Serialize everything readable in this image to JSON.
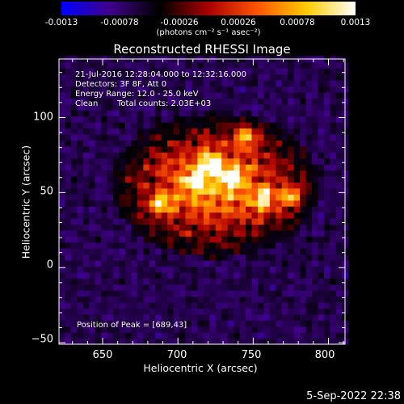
{
  "colorbar": {
    "tick_labels": [
      "-0.0013",
      "-0.00078",
      "-0.00026",
      "0.00026",
      "0.00078",
      "0.0013"
    ],
    "units": "(photons cm⁻² s⁻¹ asec⁻²)",
    "colors": [
      "#0000ff",
      "#400088",
      "#000000",
      "#aa0000",
      "#ff5500",
      "#ffcc00",
      "#ffffff"
    ]
  },
  "chart_data": {
    "type": "heatmap",
    "title": "Reconstructed RHESSI Image",
    "xlabel": "Heliocentric X (arcsec)",
    "ylabel": "Heliocentric Y (arcsec)",
    "xlim": [
      621,
      811
    ],
    "ylim": [
      -51,
      139
    ],
    "x_ticks": [
      650,
      700,
      750,
      800
    ],
    "y_ticks": [
      -50,
      0,
      50,
      100
    ],
    "x_tick_labels": [
      "650",
      "700",
      "750",
      "800"
    ],
    "y_tick_labels": [
      "−50",
      "0",
      "50",
      "100"
    ],
    "pixel_size_arcsec": 4,
    "colorbar_range": [
      -0.0013,
      0.0013
    ],
    "peak_position": [
      689,
      43
    ],
    "bright_sources": [
      [
        689,
        43
      ],
      [
        722,
        70
      ],
      [
        757,
        46
      ],
      [
        775,
        48
      ],
      [
        745,
        88
      ],
      [
        712,
        58
      ],
      [
        735,
        60
      ]
    ]
  },
  "annotations": {
    "time_range": "21-Jul-2016 12:28:04.000 to 12:32:16.000",
    "detectors": "Detectors: 3F 8F, Att 0",
    "energy_range": "Energy Range: 12.0 - 25.0 keV",
    "algorithm": "Clean",
    "total_counts": "Total counts: 2.03E+03",
    "peak_position": "Position of Peak = [689,43]"
  },
  "footer": {
    "date": "5-Sep-2022 22:38"
  }
}
